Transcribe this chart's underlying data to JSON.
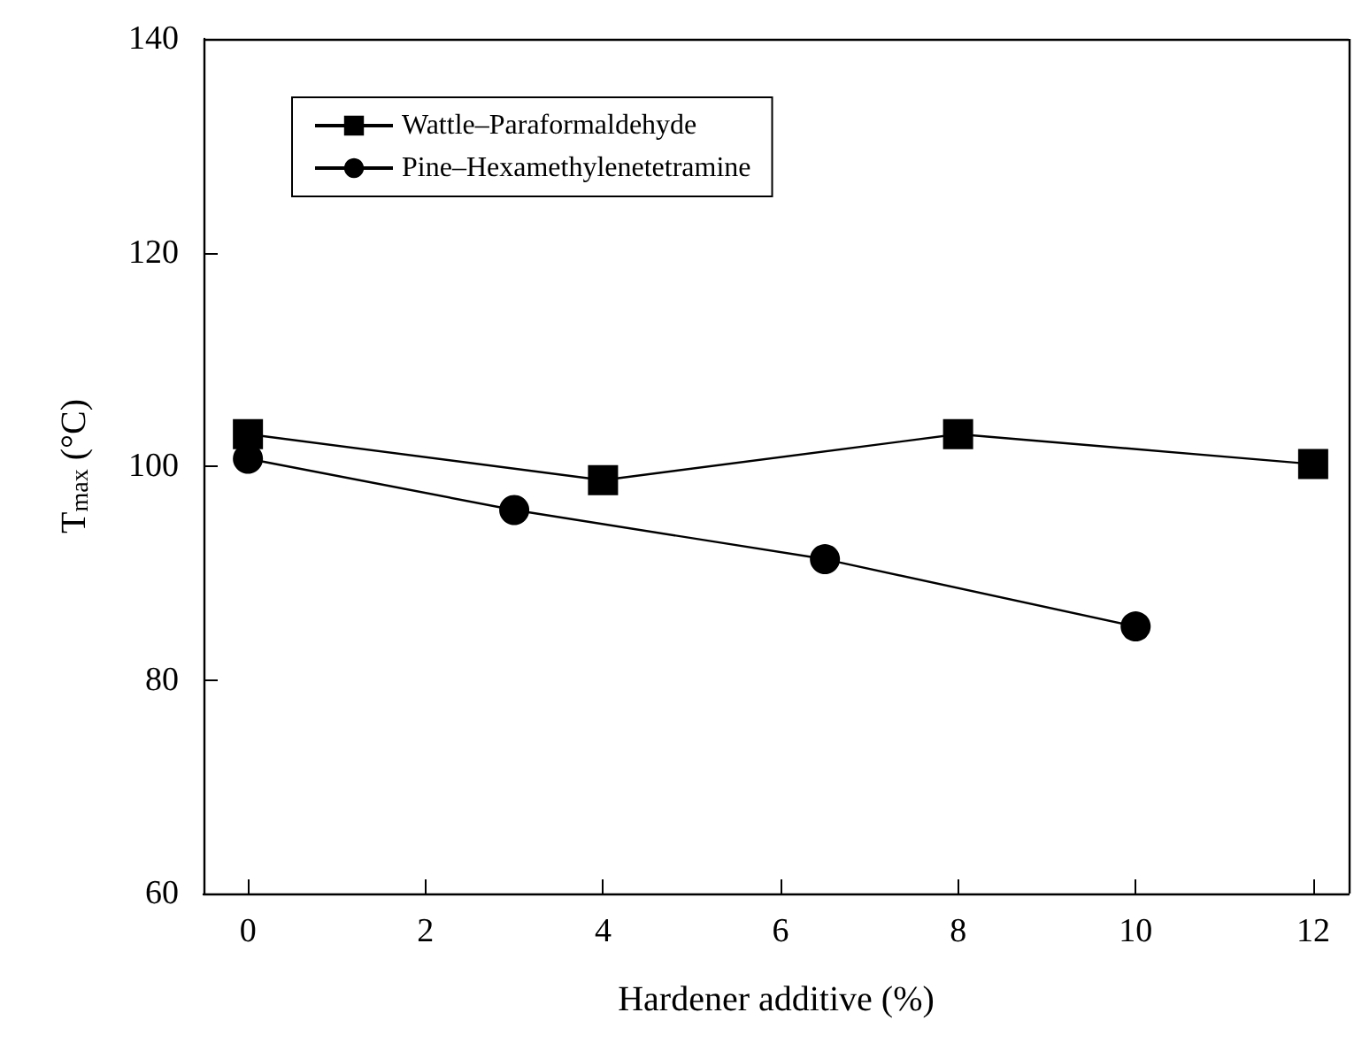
{
  "chart_data": {
    "type": "line",
    "xlabel": "Hardener additive (%)",
    "ylabel": "T$_{max}$ (°C)",
    "xlim": [
      -0.5,
      12.4
    ],
    "xticks": [
      0,
      2,
      4,
      6,
      8,
      10,
      12
    ],
    "ylim": [
      60,
      140
    ],
    "yticks": [
      60,
      80,
      100,
      120,
      140
    ],
    "grid": false,
    "legend": "top left",
    "line_style": "solid",
    "series": [
      {
        "name": "Wattle–Paraformaldehyde",
        "color": "#000000",
        "marker": "square",
        "x": [
          0,
          4,
          8,
          12
        ],
        "values": [
          103,
          98.7,
          103,
          100.2
        ]
      },
      {
        "name": "Pine–Hexamethylenetetramine",
        "color": "#000000",
        "marker": "circle",
        "x": [
          0,
          3,
          6.5,
          10
        ],
        "values": [
          100.7,
          95.9,
          91.3,
          85
        ]
      }
    ]
  }
}
